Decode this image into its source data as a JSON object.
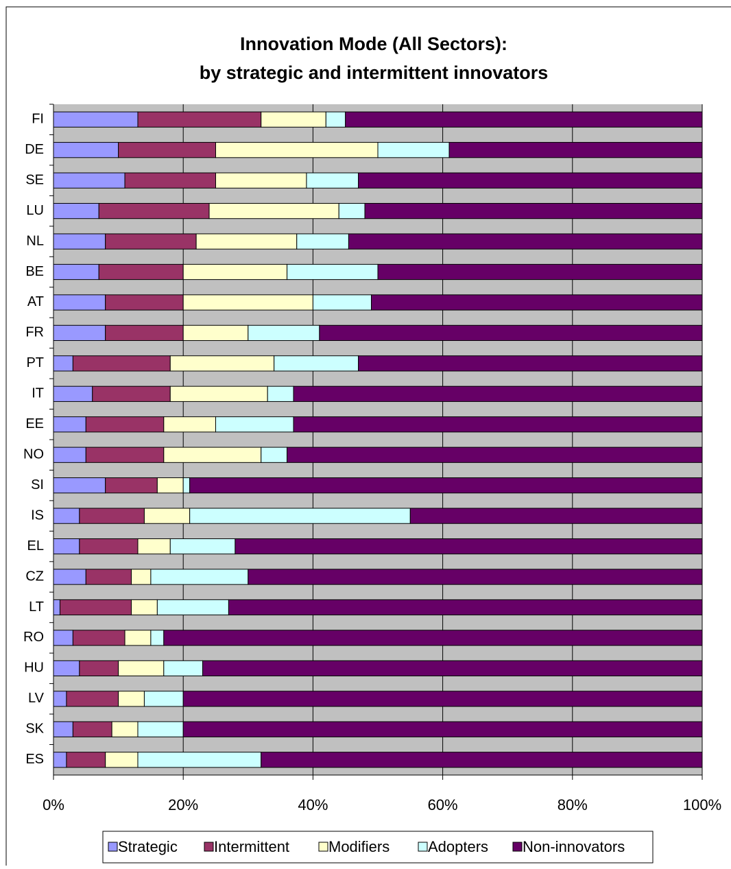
{
  "chart_data": {
    "type": "stacked-barh",
    "title": "Innovation Mode (All Sectors):",
    "subtitle": "by strategic and intermittent innovators",
    "categories": [
      "FI",
      "DE",
      "SE",
      "LU",
      "NL",
      "BE",
      "AT",
      "FR",
      "PT",
      "IT",
      "EE",
      "NO",
      "SI",
      "IS",
      "EL",
      "CZ",
      "LT",
      "RO",
      "HU",
      "LV",
      "SK",
      "ES"
    ],
    "series": [
      {
        "name": "Strategic",
        "color": "#9999ff",
        "values": [
          13,
          10,
          11,
          7,
          8,
          7,
          8,
          8,
          3,
          6,
          5,
          5,
          8,
          4,
          4,
          5,
          1,
          3,
          4,
          2,
          3,
          2
        ]
      },
      {
        "name": "Intermittent",
        "color": "#993366",
        "values": [
          19,
          15,
          14,
          17,
          14,
          13,
          12,
          12,
          15,
          12,
          12,
          12,
          8,
          10,
          9,
          7,
          11,
          8,
          6,
          8,
          6,
          6
        ]
      },
      {
        "name": "Modifiers",
        "color": "#ffffcc",
        "values": [
          10,
          25,
          14,
          20,
          15.5,
          16,
          20,
          10,
          16,
          15,
          8,
          15,
          4,
          7,
          5,
          3,
          4,
          4,
          7,
          4,
          4,
          5
        ]
      },
      {
        "name": "Adopters",
        "color": "#ccffff",
        "values": [
          3,
          11,
          8,
          4,
          8,
          14,
          9,
          11,
          13,
          4,
          12,
          4,
          1,
          34,
          10,
          15,
          11,
          2,
          6,
          6,
          7,
          19
        ]
      },
      {
        "name": "Non-innovators",
        "color": "#660066",
        "values": [
          55,
          39,
          53,
          52,
          54.5,
          50,
          51,
          59,
          53,
          63,
          63,
          64,
          79,
          45,
          72,
          70,
          73,
          83,
          77,
          80,
          80,
          68
        ]
      }
    ],
    "xlim": [
      0,
      100
    ],
    "xticks": [
      {
        "value": 0,
        "label": "0%"
      },
      {
        "value": 20,
        "label": "20%"
      },
      {
        "value": 40,
        "label": "40%"
      },
      {
        "value": 60,
        "label": "60%"
      },
      {
        "value": 80,
        "label": "80%"
      },
      {
        "value": 100,
        "label": "100%"
      }
    ],
    "grid": true,
    "legend": "bottom"
  }
}
